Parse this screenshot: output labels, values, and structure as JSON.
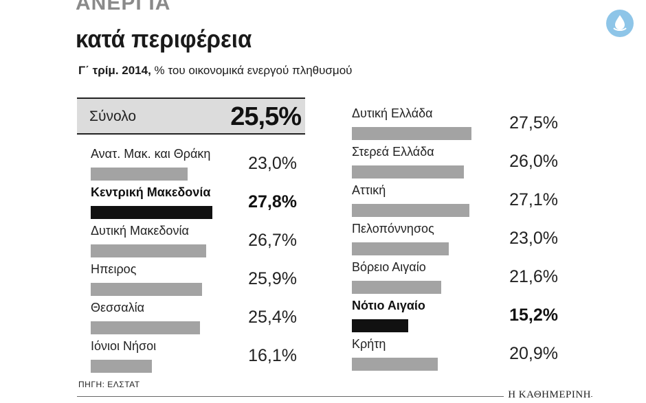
{
  "header": {
    "title_top": "ΑΝΕΡΓΙΑ",
    "title_main": "κατά περιφέρεια",
    "subtitle_bold": "Γ΄ τρίμ. 2014,",
    "subtitle_rest": " % του οικονομικά ενεργού πληθυσμού"
  },
  "total": {
    "label": "Σύνολο",
    "value": "25,5%"
  },
  "source": "ΠΗΓΗ: ΕΛΣΤΑΤ",
  "brand": "Η ΚΑΘΗΜΕΡΙΝΗ",
  "logo_icon": "water-drop-logo-icon",
  "colors": {
    "bar": "#a3a3a3",
    "highlight": "#111111",
    "total_bg": "#dcdcdc",
    "logo": "#8ec5e8"
  },
  "chart_data": {
    "type": "bar",
    "total": 25.5,
    "highlighted": [
      "Κεντρική Μακεδονία",
      "Νότιο Αιγαίο"
    ],
    "left": [
      {
        "name": "Ανατ. Μακ. και Θράκη",
        "value": 23.0,
        "label": "23,0%"
      },
      {
        "name": "Κεντρική Μακεδονία",
        "value": 27.8,
        "label": "27,8%"
      },
      {
        "name": "Δυτική Μακεδονία",
        "value": 26.7,
        "label": "26,7%"
      },
      {
        "name": "Ηπειρος",
        "value": 25.9,
        "label": "25,9%"
      },
      {
        "name": "Θεσσαλία",
        "value": 25.4,
        "label": "25,4%"
      },
      {
        "name": "Ιόνιοι Νήσοι",
        "value": 16.1,
        "label": "16,1%"
      }
    ],
    "right": [
      {
        "name": "Δυτική Ελλάδα",
        "value": 27.5,
        "label": "27,5%"
      },
      {
        "name": "Στερεά Ελλάδα",
        "value": 26.0,
        "label": "26,0%"
      },
      {
        "name": "Αττική",
        "value": 27.1,
        "label": "27,1%"
      },
      {
        "name": "Πελοπόννησος",
        "value": 23.0,
        "label": "23,0%"
      },
      {
        "name": "Βόρειο Αιγαίο",
        "value": 21.6,
        "label": "21,6%"
      },
      {
        "name": "Νότιο Αιγαίο",
        "value": 15.2,
        "label": "15,2%"
      },
      {
        "name": "Κρήτη",
        "value": 20.9,
        "label": "20,9%"
      }
    ]
  }
}
